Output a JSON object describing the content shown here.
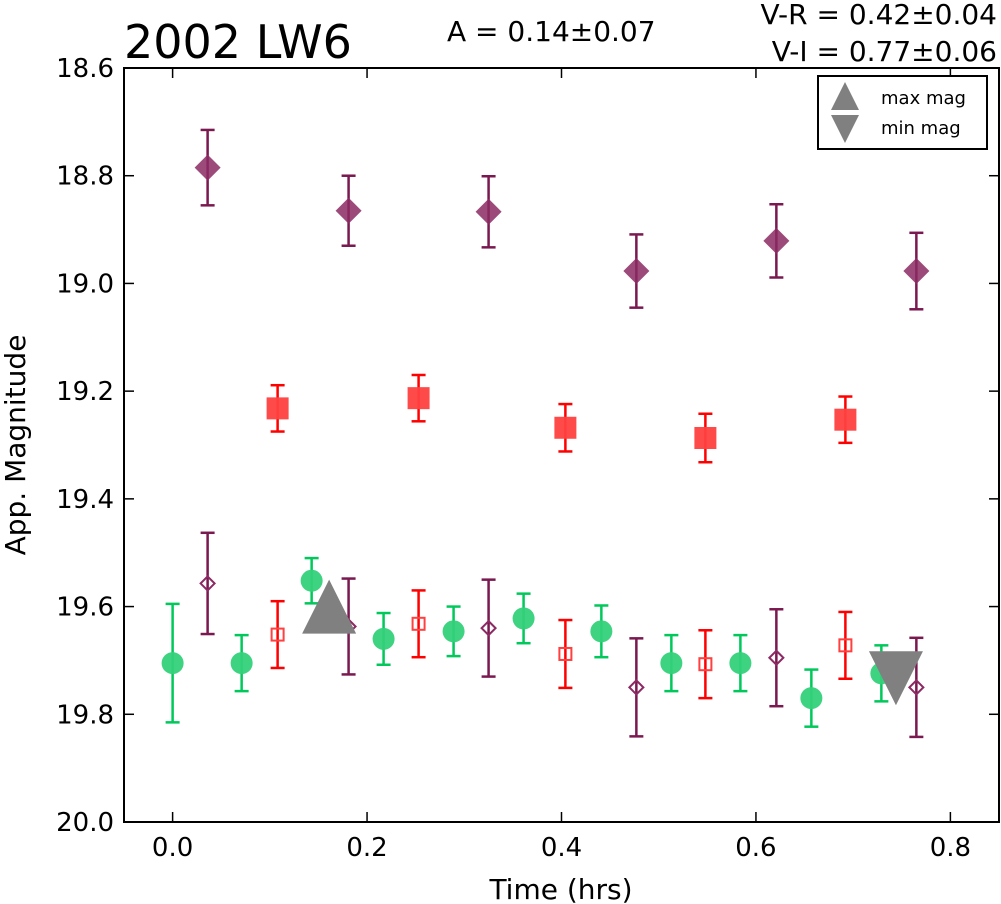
{
  "chart_data": {
    "type": "scatter",
    "title": "2002 LW6",
    "annotations": {
      "amplitude": "A  = 0.14±0.07",
      "v_r": "V-R = 0.42±0.04",
      "v_i": "V-I  = 0.77±0.06"
    },
    "xlabel": "Time (hrs)",
    "ylabel": "App. Magnitude",
    "xlim": [
      -0.05,
      0.85
    ],
    "ylim": [
      20.0,
      18.6
    ],
    "y_inverted": true,
    "grid": false,
    "x_ticks": [
      0.0,
      0.2,
      0.4,
      0.6,
      0.8
    ],
    "x_tick_labels": [
      "0.0",
      "0.2",
      "0.4",
      "0.6",
      "0.8"
    ],
    "y_ticks": [
      18.6,
      18.8,
      19.0,
      19.2,
      19.4,
      19.6,
      19.8,
      20.0
    ],
    "y_tick_labels": [
      "18.6",
      "18.8",
      "19.0",
      "19.2",
      "19.4",
      "19.6",
      "19.8",
      "20.0"
    ],
    "legend": {
      "placement": "top-right",
      "entries": [
        {
          "label": "max mag",
          "marker": "triangle-up",
          "color": "#808080"
        },
        {
          "label": "min mag",
          "marker": "triangle-down",
          "color": "#808080"
        }
      ]
    },
    "series": [
      {
        "marker": "diamond",
        "filled": true,
        "color": "#8b2a63",
        "error_color": "#7a1850",
        "points": [
          {
            "x": 0.036,
            "y": 18.785,
            "err": 0.07
          },
          {
            "x": 0.181,
            "y": 18.865,
            "err": 0.065
          },
          {
            "x": 0.325,
            "y": 18.867,
            "err": 0.066
          },
          {
            "x": 0.477,
            "y": 18.977,
            "err": 0.068
          },
          {
            "x": 0.621,
            "y": 18.921,
            "err": 0.068
          },
          {
            "x": 0.765,
            "y": 18.977,
            "err": 0.071
          }
        ]
      },
      {
        "marker": "square",
        "filled": true,
        "color": "#ff4040",
        "error_color": "#ff0000",
        "points": [
          {
            "x": 0.108,
            "y": 19.232,
            "err": 0.043
          },
          {
            "x": 0.253,
            "y": 19.213,
            "err": 0.043
          },
          {
            "x": 0.404,
            "y": 19.268,
            "err": 0.044
          },
          {
            "x": 0.548,
            "y": 19.287,
            "err": 0.045
          },
          {
            "x": 0.692,
            "y": 19.253,
            "err": 0.043
          }
        ]
      },
      {
        "marker": "circle",
        "filled": true,
        "color": "#33d17a",
        "error_color": "#00c85a",
        "points": [
          {
            "x": 0.0,
            "y": 19.705,
            "err": 0.11
          },
          {
            "x": 0.071,
            "y": 19.705,
            "err": 0.052
          },
          {
            "x": 0.143,
            "y": 19.552,
            "err": 0.042
          },
          {
            "x": 0.217,
            "y": 19.66,
            "err": 0.048
          },
          {
            "x": 0.289,
            "y": 19.646,
            "err": 0.046
          },
          {
            "x": 0.361,
            "y": 19.622,
            "err": 0.046
          },
          {
            "x": 0.441,
            "y": 19.646,
            "err": 0.048
          },
          {
            "x": 0.513,
            "y": 19.705,
            "err": 0.052
          },
          {
            "x": 0.584,
            "y": 19.705,
            "err": 0.052
          },
          {
            "x": 0.657,
            "y": 19.77,
            "err": 0.053
          },
          {
            "x": 0.729,
            "y": 19.724,
            "err": 0.052
          }
        ]
      },
      {
        "marker": "diamond",
        "filled": false,
        "color": "#8b2a63",
        "error_color": "#7a1850",
        "points": [
          {
            "x": 0.036,
            "y": 19.557,
            "err": 0.094
          },
          {
            "x": 0.181,
            "y": 19.637,
            "err": 0.089
          },
          {
            "x": 0.325,
            "y": 19.64,
            "err": 0.09
          },
          {
            "x": 0.477,
            "y": 19.75,
            "err": 0.091
          },
          {
            "x": 0.621,
            "y": 19.695,
            "err": 0.09
          },
          {
            "x": 0.765,
            "y": 19.75,
            "err": 0.092
          }
        ]
      },
      {
        "marker": "square",
        "filled": false,
        "color": "#ff4040",
        "error_color": "#ff0000",
        "points": [
          {
            "x": 0.108,
            "y": 19.652,
            "err": 0.062
          },
          {
            "x": 0.253,
            "y": 19.632,
            "err": 0.062
          },
          {
            "x": 0.404,
            "y": 19.688,
            "err": 0.063
          },
          {
            "x": 0.548,
            "y": 19.707,
            "err": 0.063
          },
          {
            "x": 0.692,
            "y": 19.672,
            "err": 0.062
          }
        ]
      }
    ],
    "extrema": [
      {
        "type": "max",
        "marker": "triangle-up",
        "color": "#808080",
        "x": 0.161,
        "y": 19.6
      },
      {
        "type": "min",
        "marker": "triangle-down",
        "color": "#808080",
        "x": 0.744,
        "y": 19.733
      }
    ]
  }
}
